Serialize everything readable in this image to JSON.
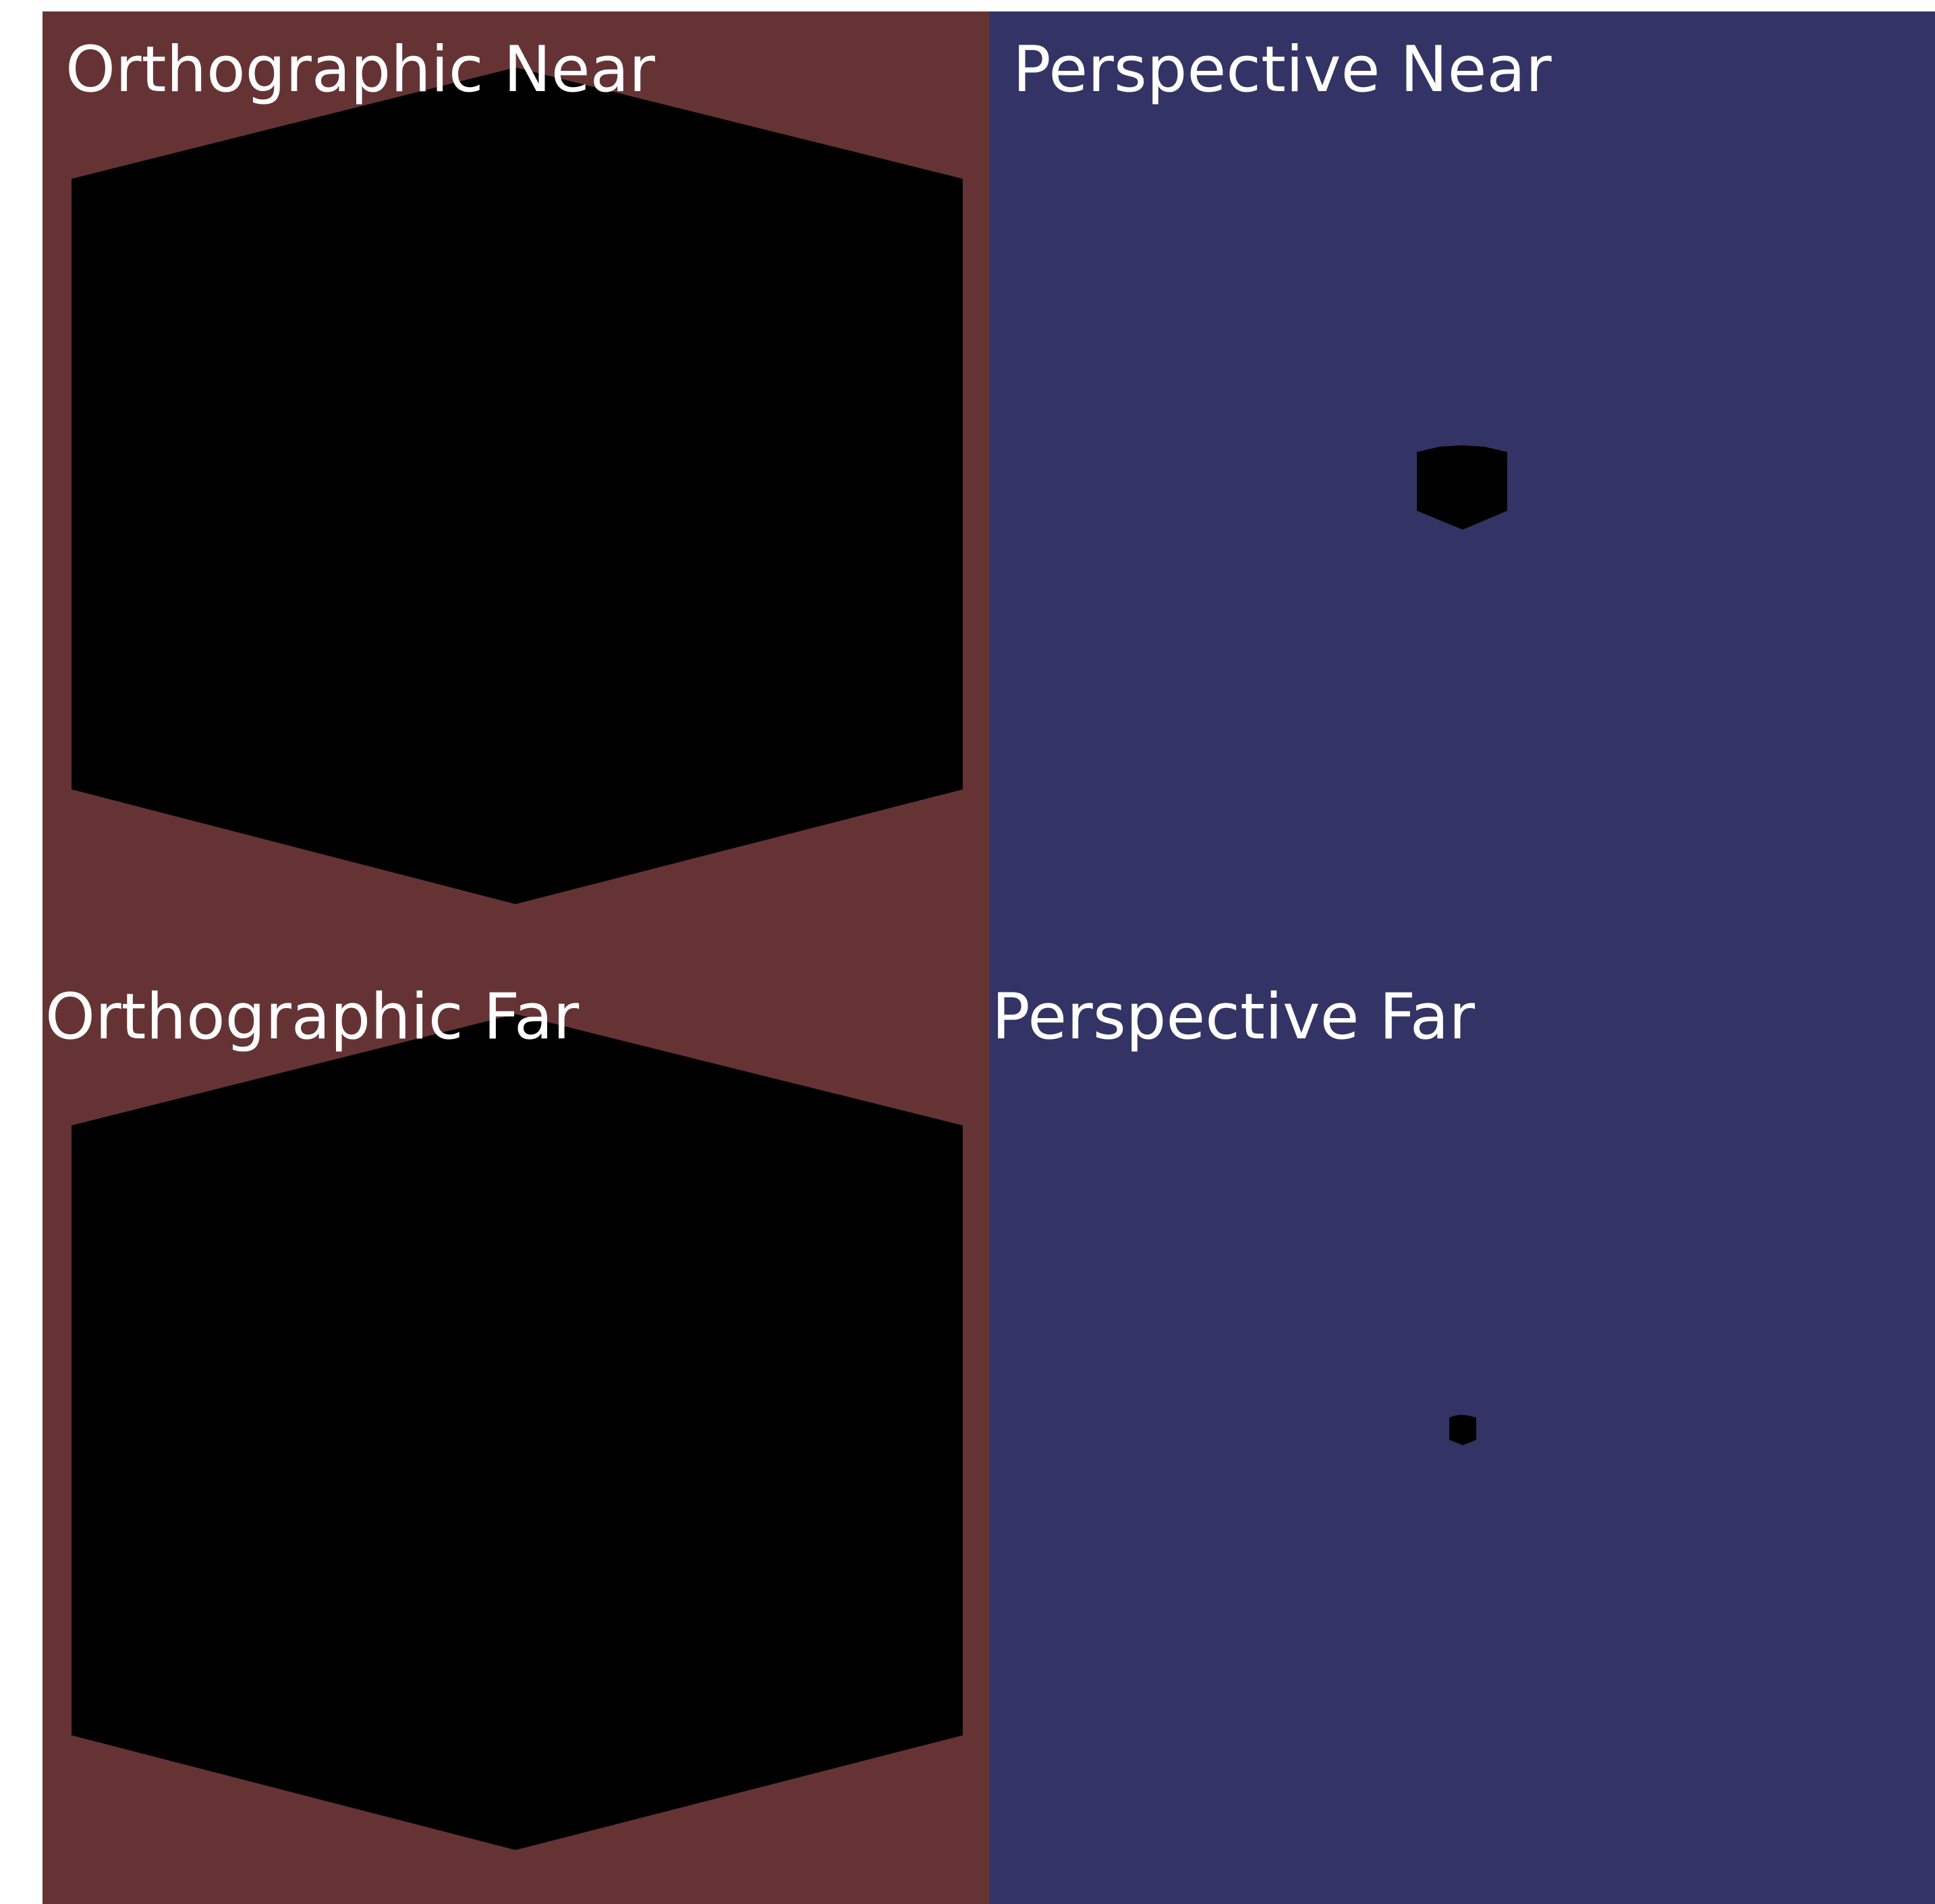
{
  "viewports": {
    "ortho_near": {
      "label": "Orthographic Near"
    },
    "persp_near": {
      "label": "Perspective Near"
    },
    "ortho_far": {
      "label": "Orthographic Far"
    },
    "persp_far": {
      "label": "Perspective Far"
    }
  },
  "colors": {
    "orthographic_background": "#663335",
    "perspective_background": "#333365",
    "object": "#000000",
    "label_text": "#ffffff"
  }
}
